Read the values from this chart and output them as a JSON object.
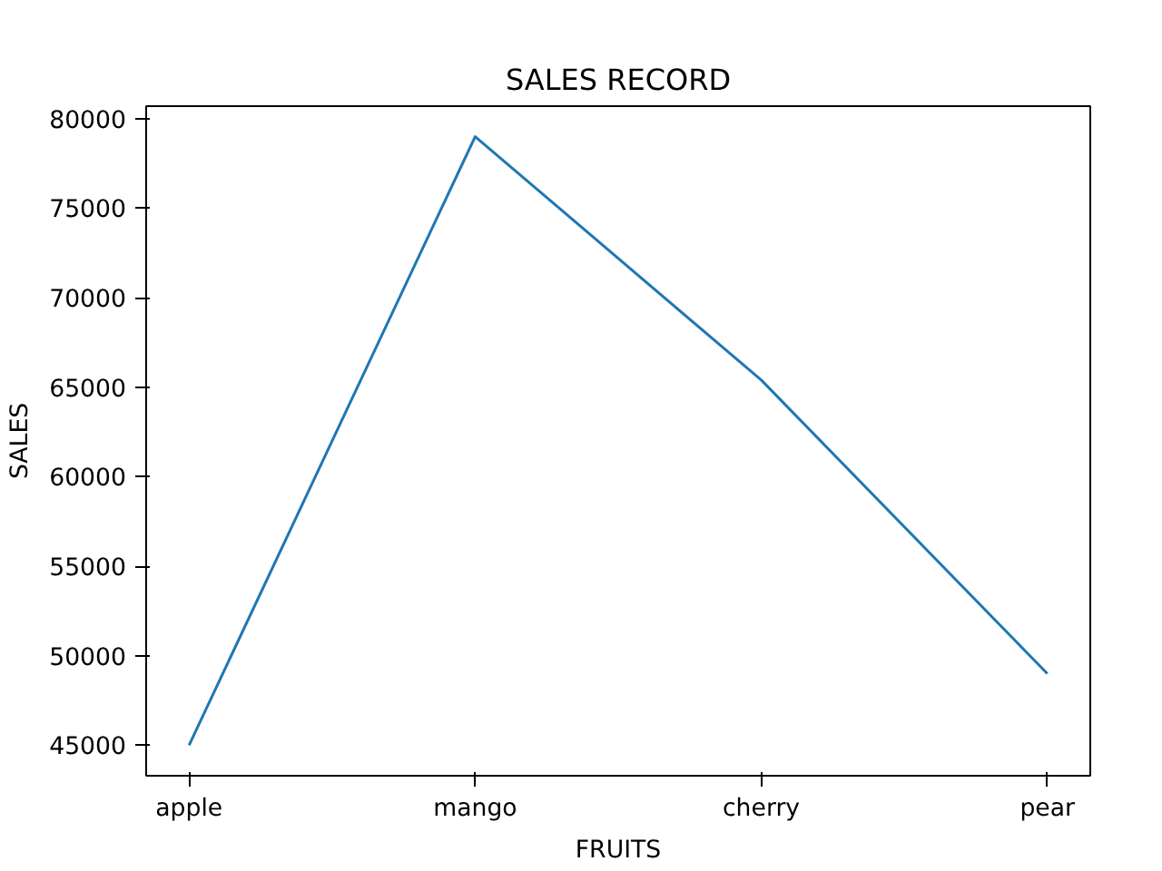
{
  "chart_data": {
    "type": "line",
    "title": "SALES RECORD",
    "xlabel": "FRUITS",
    "ylabel": "SALES",
    "categories": [
      "apple",
      "mango",
      "cherry",
      "pear"
    ],
    "series": [
      {
        "color": "#1f77b4",
        "values": [
          45000,
          79000,
          65400,
          49000
        ]
      }
    ],
    "ylim": [
      43300,
      80700
    ],
    "yticks": [
      45000,
      50000,
      55000,
      60000,
      65000,
      70000,
      75000,
      80000
    ]
  }
}
